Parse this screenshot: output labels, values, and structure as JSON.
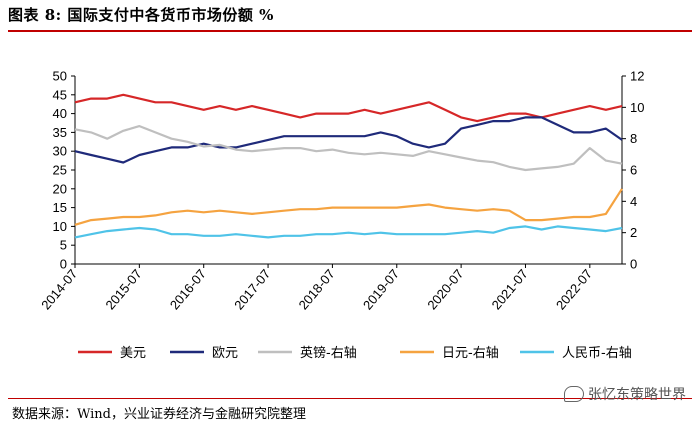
{
  "header": {
    "title": "图表 8:  国际支付中各货币市场份额 %"
  },
  "footer": {
    "source": "数据来源：Wind，兴业证券经济与金融研究院整理",
    "watermark": "张忆东策略世界"
  },
  "colors": {
    "usd": "#d62728",
    "eur": "#1f2a7a",
    "gbp": "#bfbfbf",
    "jpy": "#f5a340",
    "cny": "#4fc3e8"
  },
  "chart_data": {
    "type": "line",
    "x_dates": [
      "2014-07",
      "2014-10",
      "2015-01",
      "2015-04",
      "2015-07",
      "2015-10",
      "2016-01",
      "2016-04",
      "2016-07",
      "2016-10",
      "2017-01",
      "2017-04",
      "2017-07",
      "2017-10",
      "2018-01",
      "2018-04",
      "2018-07",
      "2018-10",
      "2019-01",
      "2019-04",
      "2019-07",
      "2019-10",
      "2020-01",
      "2020-04",
      "2020-07",
      "2020-10",
      "2021-01",
      "2021-04",
      "2021-07",
      "2021-10",
      "2022-01",
      "2022-04",
      "2022-07",
      "2022-10",
      "2023-01"
    ],
    "xticks": [
      "2014-07",
      "2015-07",
      "2016-07",
      "2017-07",
      "2018-07",
      "2019-07",
      "2020-07",
      "2021-07",
      "2022-07"
    ],
    "left_axis": {
      "range": [
        0,
        50
      ],
      "ticks": [
        0,
        5,
        10,
        15,
        20,
        25,
        30,
        35,
        40,
        45,
        50
      ]
    },
    "right_axis": {
      "range": [
        0,
        12
      ],
      "ticks": [
        0,
        2,
        4,
        6,
        8,
        10,
        12
      ]
    },
    "series": [
      {
        "name": "美元",
        "axis": "left",
        "color": "#d62728",
        "values": [
          43,
          44,
          44,
          45,
          44,
          43,
          43,
          42,
          41,
          42,
          41,
          42,
          41,
          40,
          39,
          40,
          40,
          40,
          41,
          40,
          41,
          42,
          43,
          41,
          39,
          38,
          39,
          40,
          40,
          39,
          40,
          41,
          42,
          41,
          42
        ]
      },
      {
        "name": "欧元",
        "axis": "left",
        "color": "#1f2a7a",
        "values": [
          30,
          29,
          28,
          27,
          29,
          30,
          31,
          31,
          32,
          31,
          31,
          32,
          33,
          34,
          34,
          34,
          34,
          34,
          34,
          35,
          34,
          32,
          31,
          32,
          36,
          37,
          38,
          38,
          39,
          39,
          37,
          35,
          35,
          36,
          33
        ]
      },
      {
        "name": "英镑-右轴",
        "axis": "right",
        "color": "#bfbfbf",
        "values": [
          8.6,
          8.4,
          8.0,
          8.5,
          8.8,
          8.4,
          8.0,
          7.8,
          7.5,
          7.6,
          7.3,
          7.2,
          7.3,
          7.4,
          7.4,
          7.2,
          7.3,
          7.1,
          7.0,
          7.1,
          7.0,
          6.9,
          7.2,
          7.0,
          6.8,
          6.6,
          6.5,
          6.2,
          6.0,
          6.1,
          6.2,
          6.4,
          7.4,
          6.6,
          6.4
        ]
      },
      {
        "name": "日元-右轴",
        "axis": "right",
        "color": "#f5a340",
        "values": [
          2.5,
          2.8,
          2.9,
          3.0,
          3.0,
          3.1,
          3.3,
          3.4,
          3.3,
          3.4,
          3.3,
          3.2,
          3.3,
          3.4,
          3.5,
          3.5,
          3.6,
          3.6,
          3.6,
          3.6,
          3.6,
          3.7,
          3.8,
          3.6,
          3.5,
          3.4,
          3.5,
          3.4,
          2.8,
          2.8,
          2.9,
          3.0,
          3.0,
          3.2,
          4.8
        ]
      },
      {
        "name": "人民币-右轴",
        "axis": "right",
        "color": "#4fc3e8",
        "values": [
          1.7,
          1.9,
          2.1,
          2.2,
          2.3,
          2.2,
          1.9,
          1.9,
          1.8,
          1.8,
          1.9,
          1.8,
          1.7,
          1.8,
          1.8,
          1.9,
          1.9,
          2.0,
          1.9,
          2.0,
          1.9,
          1.9,
          1.9,
          1.9,
          2.0,
          2.1,
          2.0,
          2.3,
          2.4,
          2.2,
          2.4,
          2.3,
          2.2,
          2.1,
          2.3
        ]
      }
    ],
    "legend": [
      "美元",
      "欧元",
      "英镑-右轴",
      "日元-右轴",
      "人民币-右轴"
    ],
    "legend_position": "bottom"
  }
}
